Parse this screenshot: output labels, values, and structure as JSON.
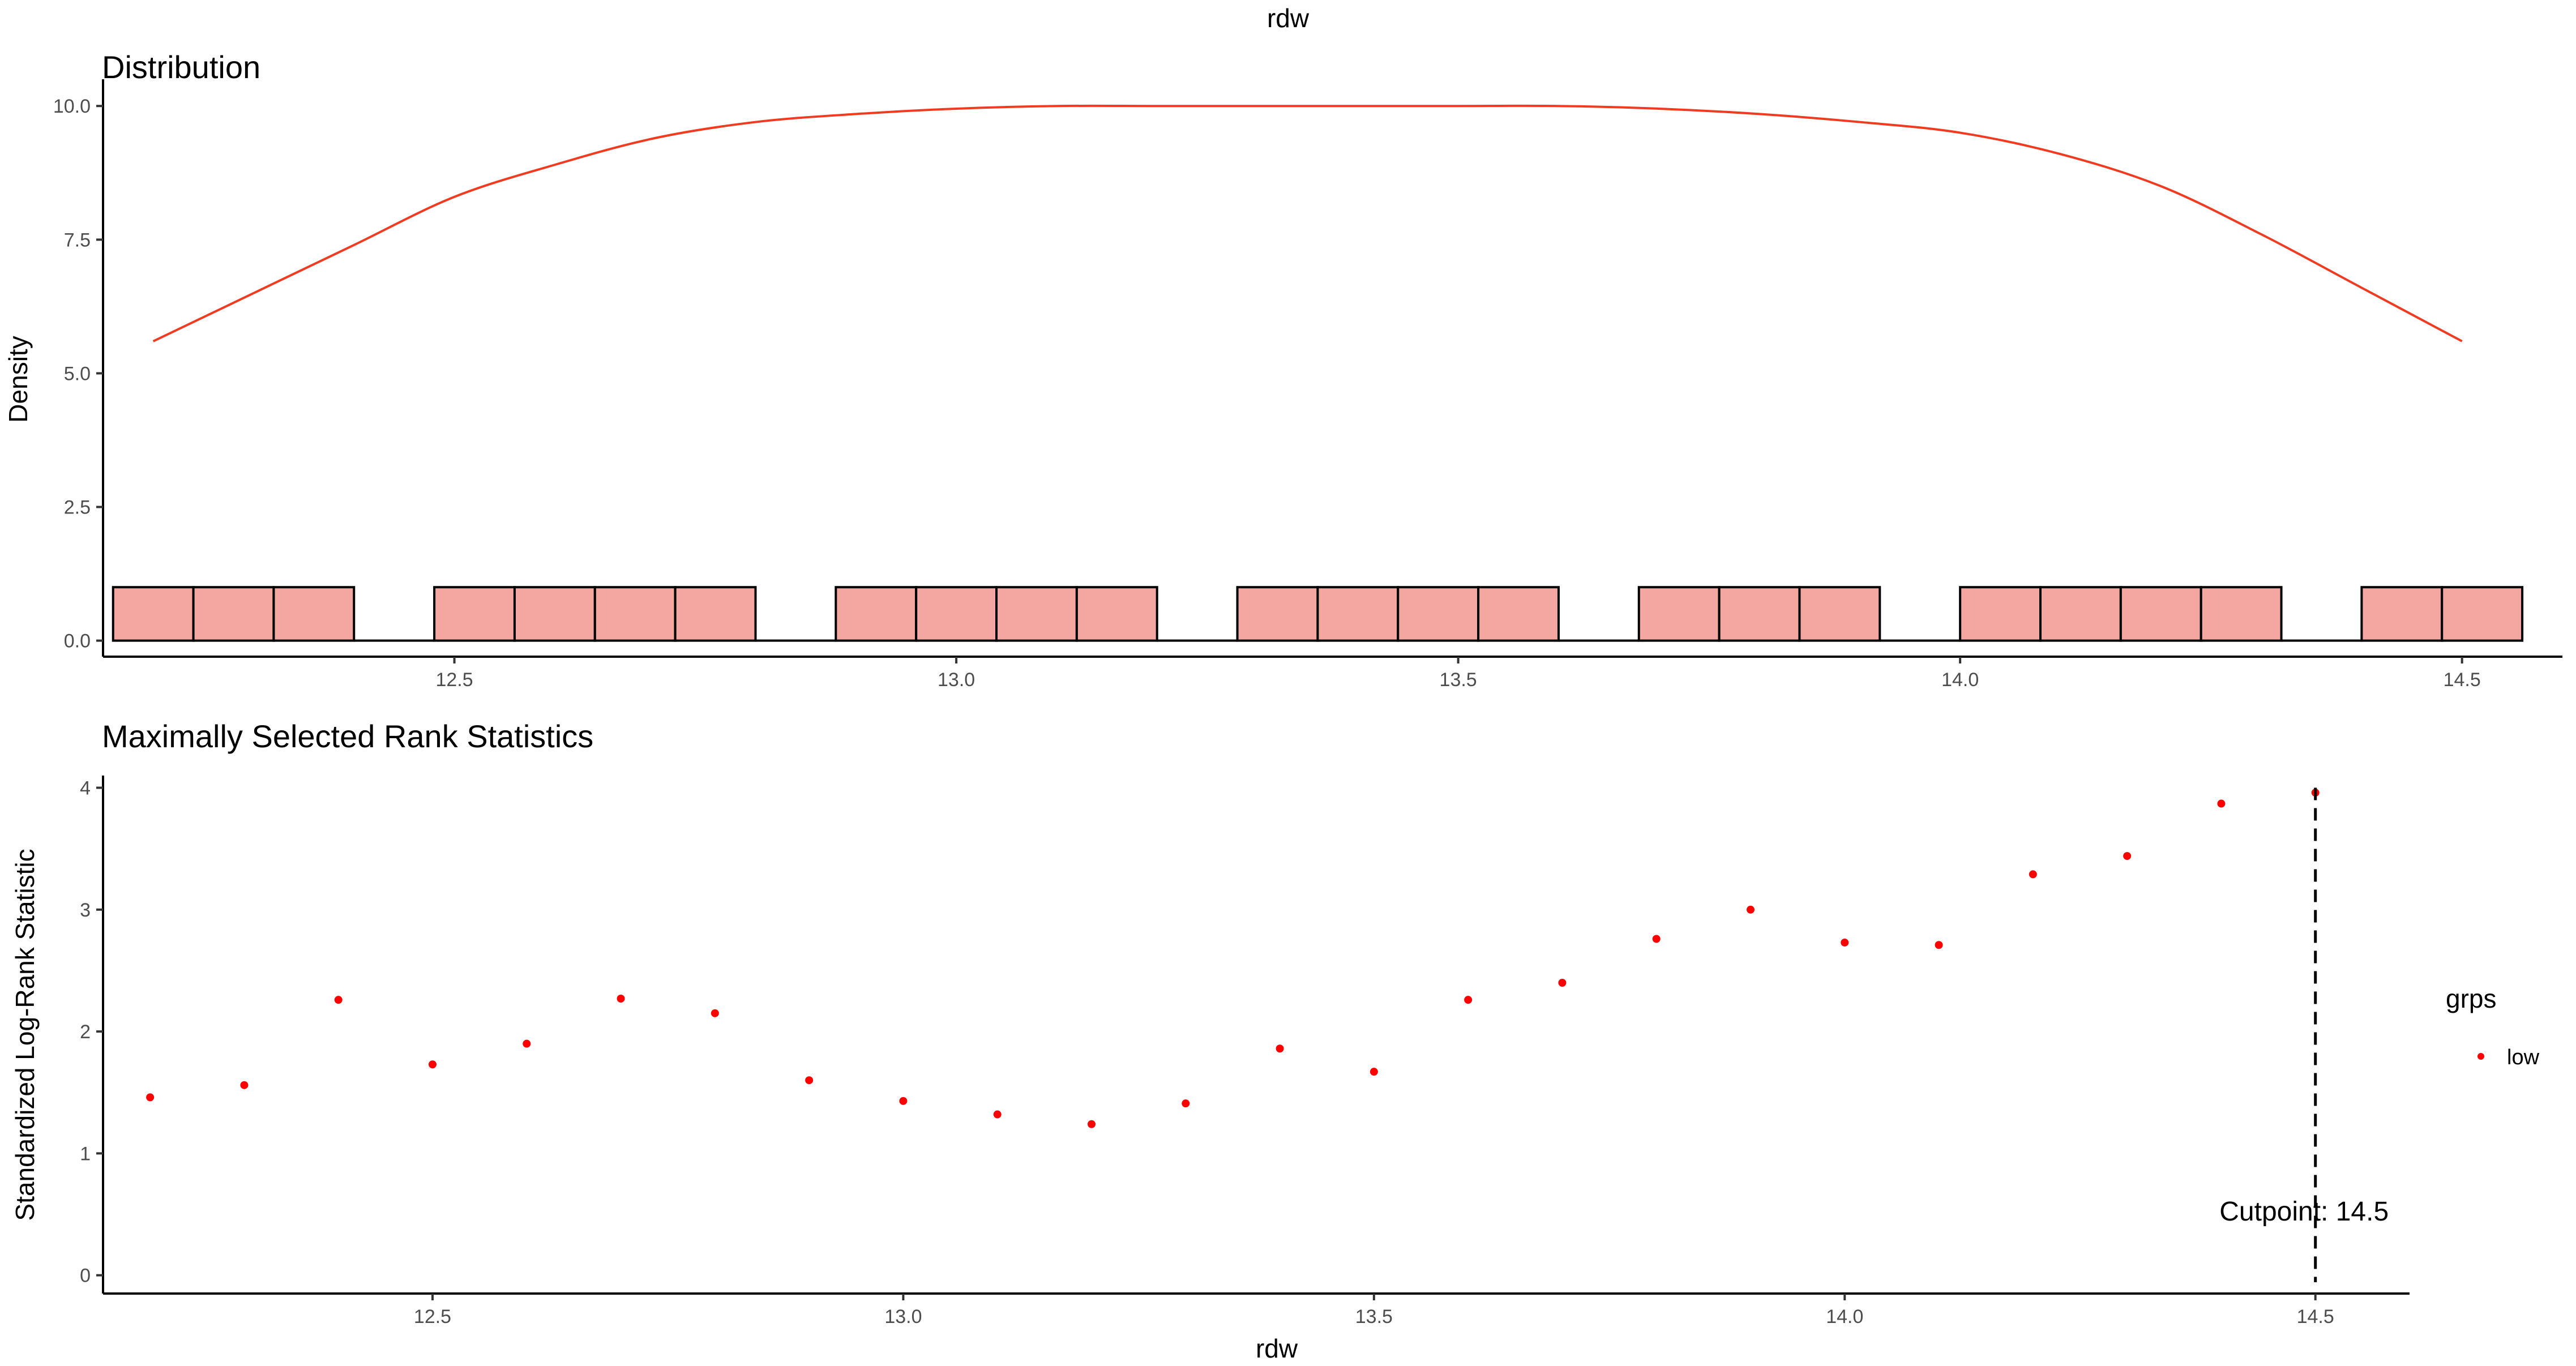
{
  "title": "rdw",
  "colors": {
    "density_line": "#f03b20",
    "bar_fill": "#f4a7a0",
    "bar_stroke": "#000000",
    "point": "#ff0000",
    "cutpoint_line": "#000000"
  },
  "chart_data": [
    {
      "type": "bar",
      "panel": "top",
      "title": "Distribution",
      "xlabel": "",
      "ylabel": "Density",
      "xlim": [
        12.15,
        14.6
      ],
      "ylim": [
        -0.3,
        10.5
      ],
      "xticks": [
        12.5,
        13.0,
        13.5,
        14.0,
        14.5
      ],
      "xtick_labels": [
        "12.5",
        "13.0",
        "13.5",
        "14.0",
        "14.5"
      ],
      "yticks": [
        0,
        2.5,
        5,
        7.5,
        10
      ],
      "ytick_labels": [
        "0.0",
        "2.5",
        "5.0",
        "7.5",
        "10.0"
      ],
      "bin_width": 0.08,
      "bins": [
        {
          "x": 12.2,
          "y": 1
        },
        {
          "x": 12.28,
          "y": 1
        },
        {
          "x": 12.36,
          "y": 1
        },
        {
          "x": 12.44,
          "y": 0
        },
        {
          "x": 12.52,
          "y": 1
        },
        {
          "x": 12.6,
          "y": 1
        },
        {
          "x": 12.68,
          "y": 1
        },
        {
          "x": 12.76,
          "y": 1
        },
        {
          "x": 12.84,
          "y": 0
        },
        {
          "x": 12.92,
          "y": 1
        },
        {
          "x": 13.0,
          "y": 1
        },
        {
          "x": 13.08,
          "y": 1
        },
        {
          "x": 13.16,
          "y": 1
        },
        {
          "x": 13.24,
          "y": 0
        },
        {
          "x": 13.32,
          "y": 1
        },
        {
          "x": 13.4,
          "y": 1
        },
        {
          "x": 13.48,
          "y": 1
        },
        {
          "x": 13.56,
          "y": 1
        },
        {
          "x": 13.64,
          "y": 0
        },
        {
          "x": 13.72,
          "y": 1
        },
        {
          "x": 13.8,
          "y": 1
        },
        {
          "x": 13.88,
          "y": 1
        },
        {
          "x": 13.96,
          "y": 0
        },
        {
          "x": 14.04,
          "y": 1
        },
        {
          "x": 14.12,
          "y": 1
        },
        {
          "x": 14.2,
          "y": 1
        },
        {
          "x": 14.28,
          "y": 1
        },
        {
          "x": 14.36,
          "y": 0
        },
        {
          "x": 14.44,
          "y": 1
        },
        {
          "x": 14.52,
          "y": 1
        }
      ],
      "density_curve": {
        "x": [
          12.2,
          12.3,
          12.4,
          12.5,
          12.6,
          12.7,
          12.8,
          12.9,
          13.0,
          13.1,
          13.2,
          13.3,
          13.4,
          13.5,
          13.6,
          13.7,
          13.8,
          13.9,
          14.0,
          14.1,
          14.2,
          14.3,
          14.4,
          14.5
        ],
        "y": [
          5.6,
          6.5,
          7.4,
          8.3,
          8.9,
          9.4,
          9.7,
          9.85,
          9.95,
          10.0,
          10.0,
          10.0,
          10.0,
          10.0,
          10.0,
          9.95,
          9.85,
          9.7,
          9.5,
          9.1,
          8.5,
          7.6,
          6.6,
          5.6
        ]
      }
    },
    {
      "type": "scatter",
      "panel": "bottom",
      "title": "Maximally Selected Rank Statistics",
      "xlabel": "rdw",
      "ylabel": "Standardized Log-Rank Statistic",
      "xlim": [
        12.15,
        14.6
      ],
      "ylim": [
        -0.15,
        4.1
      ],
      "xticks": [
        12.5,
        13.0,
        13.5,
        14.0,
        14.5
      ],
      "xtick_labels": [
        "12.5",
        "13.0",
        "13.5",
        "14.0",
        "14.5"
      ],
      "yticks": [
        0,
        1,
        2,
        3,
        4
      ],
      "ytick_labels": [
        "0",
        "1",
        "2",
        "3",
        "4"
      ],
      "legend": {
        "title": "grps",
        "position": "right",
        "entries": [
          "low"
        ]
      },
      "series": [
        {
          "name": "low",
          "x": [
            12.2,
            12.3,
            12.4,
            12.5,
            12.6,
            12.7,
            12.8,
            12.9,
            13.0,
            13.1,
            13.2,
            13.3,
            13.4,
            13.5,
            13.6,
            13.7,
            13.8,
            13.9,
            14.0,
            14.1,
            14.2,
            14.3,
            14.4,
            14.5
          ],
          "y": [
            1.46,
            1.56,
            2.26,
            1.73,
            1.9,
            2.27,
            2.15,
            1.6,
            1.43,
            1.32,
            1.24,
            1.41,
            1.86,
            1.67,
            2.26,
            2.4,
            2.76,
            3.0,
            2.73,
            2.71,
            3.29,
            3.44,
            3.87,
            3.96
          ]
        }
      ],
      "cutpoint": {
        "x": 14.5,
        "label": "Cutpoint: 14.5"
      }
    }
  ]
}
